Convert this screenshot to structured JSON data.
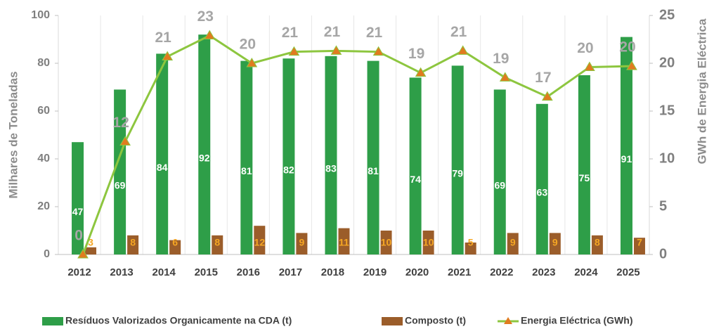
{
  "chart_data": {
    "type": "bar_line",
    "categories": [
      "2012",
      "2013",
      "2014",
      "2015",
      "2016",
      "2017",
      "2018",
      "2019",
      "2020",
      "2021",
      "2022",
      "2023",
      "2024",
      "2025"
    ],
    "y_label": "Milhares de Toneladas",
    "y2_label": "GWh de Energia Eléctrica",
    "ylim": [
      0,
      100
    ],
    "yticks": [
      0,
      20,
      40,
      60,
      80,
      100
    ],
    "y2lim": [
      0,
      25
    ],
    "y2ticks": [
      0,
      5,
      10,
      15,
      20,
      25
    ],
    "legend": "bottom",
    "series": [
      {
        "name": "Resíduos Valorizados Organicamente na CDA (t)",
        "type": "bar",
        "color": "#2e9e48",
        "values": [
          47,
          69,
          84,
          92,
          81,
          82,
          83,
          81,
          74,
          79,
          69,
          63,
          75,
          91
        ]
      },
      {
        "name": "Composto (t)",
        "type": "bar",
        "color": "#9b5d2a",
        "values": [
          3,
          8,
          6,
          8,
          12,
          9,
          11,
          10,
          10,
          5,
          9,
          9,
          8,
          7
        ]
      },
      {
        "name": "Energia Eléctrica (GWh)",
        "type": "line",
        "axis": "y2",
        "color": "#8dc63f",
        "marker_color": "#e07b20",
        "values": [
          0,
          11.8,
          20.7,
          22.9,
          20.0,
          21.2,
          21.3,
          21.2,
          19.0,
          21.3,
          18.5,
          16.5,
          19.6,
          19.7
        ],
        "value_labels": [
          "0",
          "12",
          "21",
          "23",
          "20",
          "21",
          "21",
          "21",
          "19",
          "21",
          "19",
          "17",
          "20",
          "20"
        ]
      }
    ]
  }
}
